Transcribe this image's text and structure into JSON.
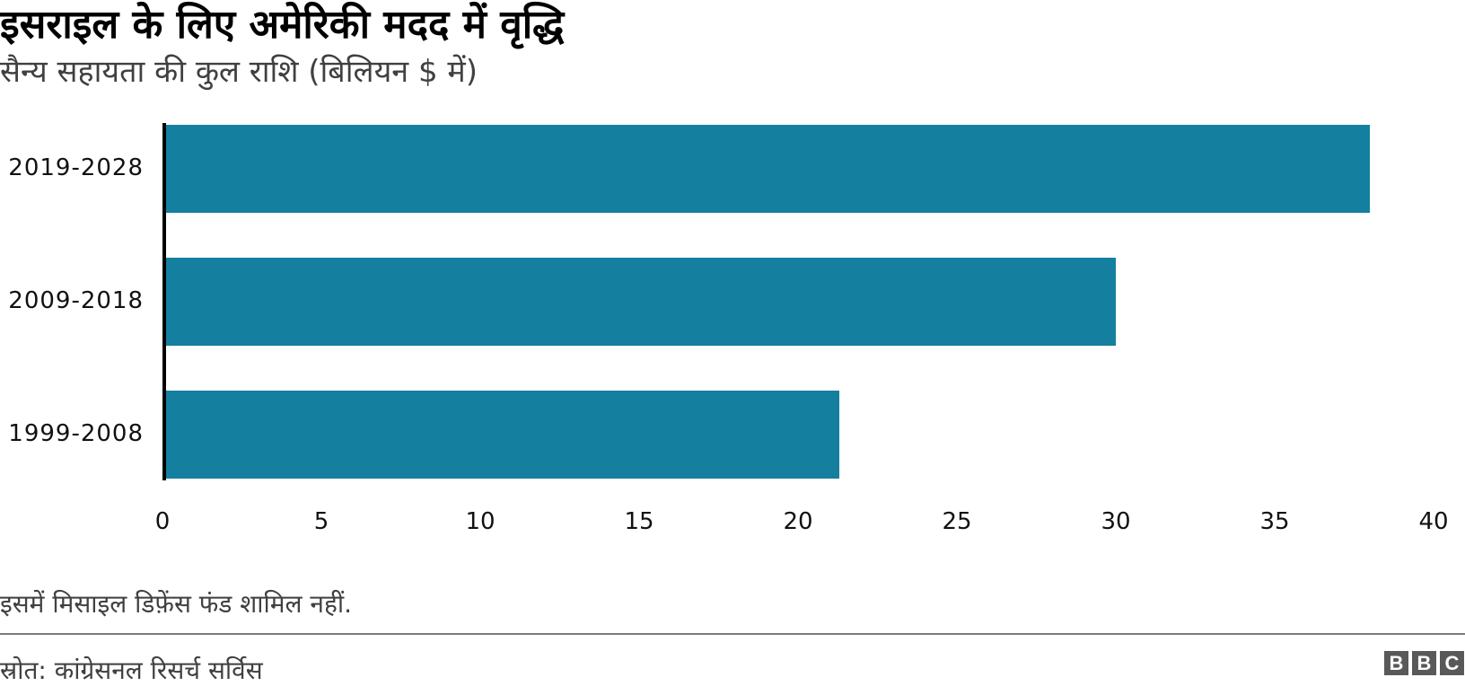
{
  "header": {
    "title": "इसराइल के लिए अमेरिकी मदद में वृद्धि",
    "subtitle": "सैन्य सहायता की कुल राशि (बिलियन $ में)"
  },
  "footer": {
    "note": "इसमें मिसाइल डिफ़ेंस फंड शामिल नहीं.",
    "source": "स्रोत: कांग्रेसनल रिसर्च सर्विस",
    "logo": [
      "B",
      "B",
      "C"
    ]
  },
  "colors": {
    "bar": "#157fa0",
    "axis": "#000000",
    "divider": "#7a7a7a",
    "logo_bg": "#595959"
  },
  "chart_data": {
    "type": "bar",
    "orientation": "horizontal",
    "title": "इसराइल के लिए अमेरिकी मदद में वृद्धि",
    "subtitle": "सैन्य सहायता की कुल राशि (बिलियन $ में)",
    "categories": [
      "2019-2028",
      "2009-2018",
      "1999-2008"
    ],
    "values": [
      38,
      30,
      21.3
    ],
    "xlabel": "",
    "ylabel": "",
    "xlim": [
      0,
      40
    ],
    "x_ticks": [
      "0",
      "5",
      "10",
      "15",
      "20",
      "25",
      "30",
      "35",
      "40"
    ],
    "grid": false,
    "legend": null,
    "annotations": [
      "इसमें मिसाइल डिफ़ेंस फंड शामिल नहीं."
    ],
    "source": "स्रोत: कांग्रेसनल रिसर्च सर्विस"
  }
}
